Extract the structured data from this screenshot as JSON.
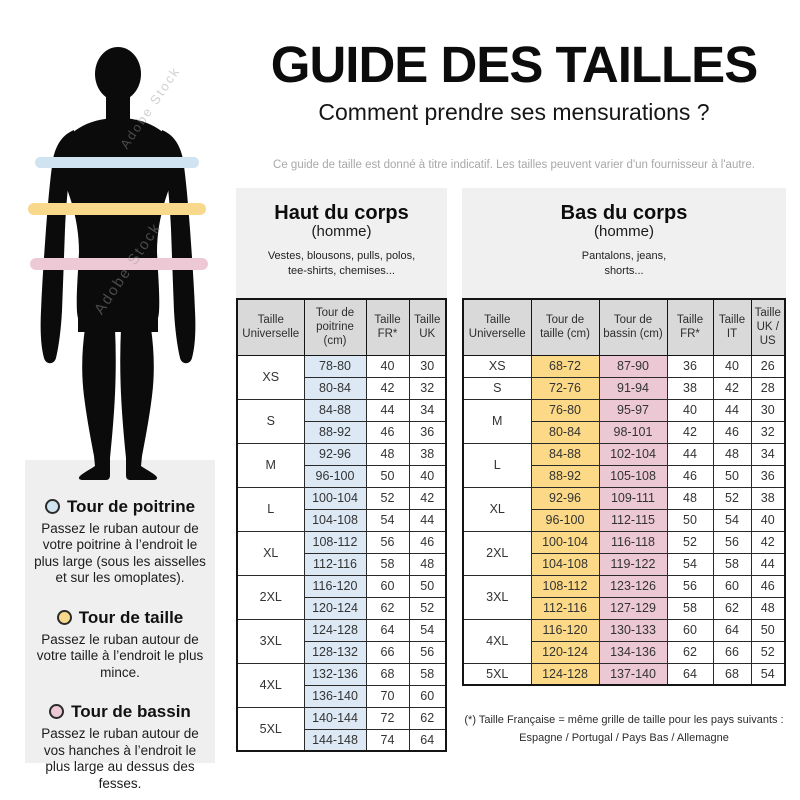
{
  "header": {
    "title": "GUIDE DES TAILLES",
    "subtitle": "Comment prendre ses mensurations ?",
    "disclaimer": "Ce guide de taille est donné à titre indicatif. Les tailles peuvent varier d'un fournisseur à l'autre."
  },
  "figure": {
    "watermark": "Adobe Stock",
    "bands": [
      {
        "name": "chest",
        "color": "#cfe3f0"
      },
      {
        "name": "waist",
        "color": "#f8d98b"
      },
      {
        "name": "hips",
        "color": "#edc9d6"
      }
    ]
  },
  "legend": {
    "items": [
      {
        "title": "Tour de poitrine",
        "color": "#cfe3f0",
        "text": "Passez le ruban autour de votre poitrine à l’endroit le plus large (sous les aisselles et sur les omoplates)."
      },
      {
        "title": "Tour de taille",
        "color": "#f8d98b",
        "text": "Passez le ruban autour de votre taille à l’endroit le plus mince."
      },
      {
        "title": "Tour de bassin",
        "color": "#edc9d6",
        "text": "Passez le ruban autour de vos hanches à l’endroit le plus large au dessus des fesses."
      }
    ]
  },
  "upper_table": {
    "heading": "Haut du corps",
    "subheading": "(homme)",
    "description": "Vestes, blousons, pulls, polos, tee-shirts, chemises...",
    "columns": [
      {
        "label": "Taille Universelle"
      },
      {
        "label": "Tour de poitrine (cm)",
        "bg": "#dce9f5"
      },
      {
        "label": "Taille FR*"
      },
      {
        "label": "Taille UK"
      }
    ],
    "groups": [
      {
        "size": "XS",
        "rows": [
          [
            "78-80",
            "40",
            "30"
          ],
          [
            "80-84",
            "42",
            "32"
          ]
        ]
      },
      {
        "size": "S",
        "rows": [
          [
            "84-88",
            "44",
            "34"
          ],
          [
            "88-92",
            "46",
            "36"
          ]
        ]
      },
      {
        "size": "M",
        "rows": [
          [
            "92-96",
            "48",
            "38"
          ],
          [
            "96-100",
            "50",
            "40"
          ]
        ]
      },
      {
        "size": "L",
        "rows": [
          [
            "100-104",
            "52",
            "42"
          ],
          [
            "104-108",
            "54",
            "44"
          ]
        ]
      },
      {
        "size": "XL",
        "rows": [
          [
            "108-112",
            "56",
            "46"
          ],
          [
            "112-116",
            "58",
            "48"
          ]
        ]
      },
      {
        "size": "2XL",
        "rows": [
          [
            "116-120",
            "60",
            "50"
          ],
          [
            "120-124",
            "62",
            "52"
          ]
        ]
      },
      {
        "size": "3XL",
        "rows": [
          [
            "124-128",
            "64",
            "54"
          ],
          [
            "128-132",
            "66",
            "56"
          ]
        ]
      },
      {
        "size": "4XL",
        "rows": [
          [
            "132-136",
            "68",
            "58"
          ],
          [
            "136-140",
            "70",
            "60"
          ]
        ]
      },
      {
        "size": "5XL",
        "rows": [
          [
            "140-144",
            "72",
            "62"
          ],
          [
            "144-148",
            "74",
            "64"
          ]
        ]
      }
    ]
  },
  "lower_table": {
    "heading": "Bas du corps",
    "subheading": "(homme)",
    "description": "Pantalons, jeans, shorts...",
    "columns": [
      {
        "label": "Taille Universelle"
      },
      {
        "label": "Tour de taille (cm)",
        "bg": "#fbd987"
      },
      {
        "label": "Tour de bassin (cm)",
        "bg": "#ecc8d5"
      },
      {
        "label": "Taille FR*"
      },
      {
        "label": "Taille IT"
      },
      {
        "label": "Taille UK / US"
      }
    ],
    "groups": [
      {
        "size": "XS",
        "rows": [
          [
            "68-72",
            "87-90",
            "36",
            "40",
            "26"
          ]
        ]
      },
      {
        "size": "S",
        "rows": [
          [
            "72-76",
            "91-94",
            "38",
            "42",
            "28"
          ]
        ]
      },
      {
        "size": "M",
        "rows": [
          [
            "76-80",
            "95-97",
            "40",
            "44",
            "30"
          ],
          [
            "80-84",
            "98-101",
            "42",
            "46",
            "32"
          ]
        ]
      },
      {
        "size": "L",
        "rows": [
          [
            "84-88",
            "102-104",
            "44",
            "48",
            "34"
          ],
          [
            "88-92",
            "105-108",
            "46",
            "50",
            "36"
          ]
        ]
      },
      {
        "size": "XL",
        "rows": [
          [
            "92-96",
            "109-111",
            "48",
            "52",
            "38"
          ],
          [
            "96-100",
            "112-115",
            "50",
            "54",
            "40"
          ]
        ]
      },
      {
        "size": "2XL",
        "rows": [
          [
            "100-104",
            "116-118",
            "52",
            "56",
            "42"
          ],
          [
            "104-108",
            "119-122",
            "54",
            "58",
            "44"
          ]
        ]
      },
      {
        "size": "3XL",
        "rows": [
          [
            "108-112",
            "123-126",
            "56",
            "60",
            "46"
          ],
          [
            "112-116",
            "127-129",
            "58",
            "62",
            "48"
          ]
        ]
      },
      {
        "size": "4XL",
        "rows": [
          [
            "116-120",
            "130-133",
            "60",
            "64",
            "50"
          ],
          [
            "120-124",
            "134-136",
            "62",
            "66",
            "52"
          ]
        ]
      },
      {
        "size": "5XL",
        "rows": [
          [
            "124-128",
            "137-140",
            "64",
            "68",
            "54"
          ]
        ]
      }
    ],
    "footnote_line1": "(*) Taille Française = même grille de taille pour les pays suivants :",
    "footnote_line2": "Espagne / Portugal / Pays Bas / Allemagne"
  }
}
